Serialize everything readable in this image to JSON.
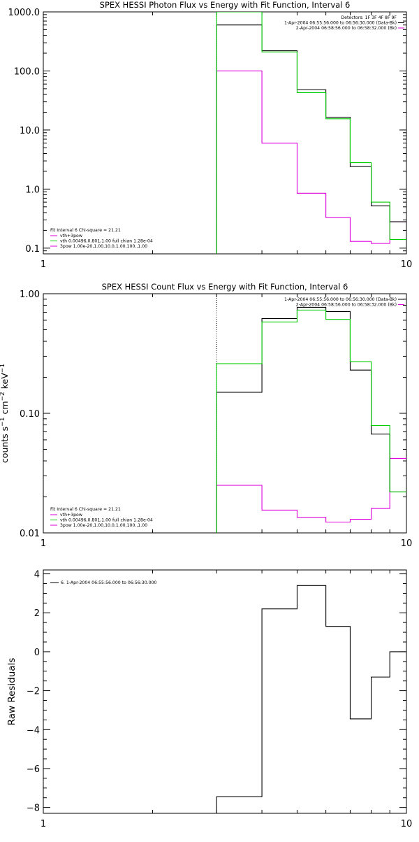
{
  "chart_data": [
    {
      "type": "line",
      "title": "SPEX HESSI Photon Flux vs Energy with Fit Function, Interval 6",
      "xlabel": "",
      "ylabel": "",
      "x_scale": "log",
      "y_scale": "log",
      "xlim": [
        1,
        10
      ],
      "ylim": [
        0.08,
        1000
      ],
      "x_ticklabels": [
        {
          "v": 1,
          "t": "1"
        },
        {
          "v": 10,
          "t": "10"
        }
      ],
      "y_ticklabels": [
        {
          "v": 0.1,
          "t": "0.1"
        },
        {
          "v": 1,
          "t": "1.0"
        },
        {
          "v": 10,
          "t": "10.0"
        },
        {
          "v": 100,
          "t": "100.0"
        },
        {
          "v": 1000,
          "t": "1000.0"
        }
      ],
      "vline": 3,
      "bin_edges": [
        3,
        4,
        5,
        6,
        7,
        8,
        9,
        10
      ],
      "series": [
        {
          "name": "1-Apr-2004 06:55:56.000 to 06:56:30.000 (Data-Bk)",
          "color": "#000000",
          "values": [
            600,
            220,
            48,
            16.5,
            2.4,
            0.52,
            0.28
          ]
        },
        {
          "name": "2-Apr-2004 06:58:56.000 to 06:58:32.000 (Bk)",
          "color": "#dd00dd",
          "values": [
            100,
            6.0,
            0.85,
            0.33,
            0.13,
            0.12,
            0.28
          ]
        },
        {
          "name": "vth+3pow",
          "color": "#00cc00",
          "values": [
            1000,
            210,
            43,
            15.5,
            2.8,
            0.6,
            0.14
          ]
        }
      ],
      "legend_top": {
        "lines": [
          "Detectors: 1F 3F 4F 8F 9F",
          "1-Apr-2004 06:55:56.000 to 06:56:30.000 (Data-Bk)",
          "2-Apr-2004 06:58:56.000 to 06:58:32.000 (Bk)"
        ]
      },
      "legend_bottom": {
        "header": "Fit Interval 6   Chi-square = 21.21",
        "lines": [
          "vth+3pow",
          "vth 0.00496,0.801,1.00   full chian 1.28e-04",
          "3pow 1.00e-20,1.00,10.0,1.00,100.,1.00"
        ]
      }
    },
    {
      "type": "line",
      "title": "SPEX HESSI Count Flux vs Energy with Fit Function, Interval 6",
      "xlabel": "",
      "ylabel": "counts s-1 cm-2 keV-1",
      "x_scale": "log",
      "y_scale": "log",
      "xlim": [
        1,
        10
      ],
      "ylim": [
        0.01,
        1.0
      ],
      "x_ticklabels": [
        {
          "v": 1,
          "t": "1"
        },
        {
          "v": 10,
          "t": "10"
        }
      ],
      "y_ticklabels": [
        {
          "v": 0.01,
          "t": "0.01"
        },
        {
          "v": 0.1,
          "t": "0.10"
        },
        {
          "v": 1,
          "t": "1.00"
        }
      ],
      "vline": 3,
      "bin_edges": [
        3,
        4,
        5,
        6,
        7,
        8,
        9,
        10
      ],
      "series": [
        {
          "name": "1-Apr-2004 06:55:56.000 to 06:56:30.000 (Data-Bk)",
          "color": "#000000",
          "values": [
            0.15,
            0.62,
            0.77,
            0.71,
            0.23,
            0.067,
            0.022
          ]
        },
        {
          "name": "2-Apr-2004 06:58:56.000 to 06:58:32.000 (Bk)",
          "color": "#dd00dd",
          "values": [
            0.025,
            0.0155,
            0.0135,
            0.0123,
            0.013,
            0.016,
            0.042
          ]
        },
        {
          "name": "vth+3pow",
          "color": "#00cc00",
          "values": [
            0.26,
            0.58,
            0.73,
            0.61,
            0.27,
            0.079,
            0.022
          ]
        }
      ],
      "legend_top": {
        "lines": [
          "1-Apr-2004 06:55:56.000 to 06:56:30.000 (Data-Bk)",
          "2-Apr-2004 06:58:56.000 to 06:58:32.000 (Bk)"
        ]
      },
      "legend_bottom": {
        "header": "Fit Interval 6   Chi-square = 21.21",
        "lines": [
          "vth+3pow",
          "vth 0.00496,0.801,1.00   full chian 1.28e-04",
          "3pow 1.00e-20,1.00,10.0,1.00,100.,1.00"
        ]
      }
    },
    {
      "type": "line",
      "title": "",
      "xlabel": "",
      "ylabel": "Raw Residuals",
      "x_scale": "log",
      "y_scale": "linear",
      "xlim": [
        1,
        10
      ],
      "ylim": [
        -8.3,
        4.2
      ],
      "x_ticklabels": [
        {
          "v": 1,
          "t": "1"
        },
        {
          "v": 10,
          "t": "10"
        }
      ],
      "y_ticklabels": [
        {
          "v": 4,
          "t": "4"
        },
        {
          "v": 2,
          "t": "2"
        },
        {
          "v": 0,
          "t": "0"
        },
        {
          "v": -2,
          "t": "−2"
        },
        {
          "v": -4,
          "t": "−4"
        },
        {
          "v": -6,
          "t": "−6"
        },
        {
          "v": -8,
          "t": "−8"
        }
      ],
      "bin_edges": [
        3,
        4,
        5,
        6,
        7,
        8,
        9,
        10
      ],
      "series": [
        {
          "name": "6. 1-Apr-2004 06:55:56.000 to 06:56:30.000",
          "color": "#000000",
          "values": [
            -7.45,
            2.2,
            3.4,
            1.3,
            -3.45,
            -1.3,
            0.0
          ]
        }
      ],
      "legend_top": {
        "lines": [
          "6. 1-Apr-2004 06:55:56.000 to 06:56:30.000"
        ]
      }
    }
  ]
}
